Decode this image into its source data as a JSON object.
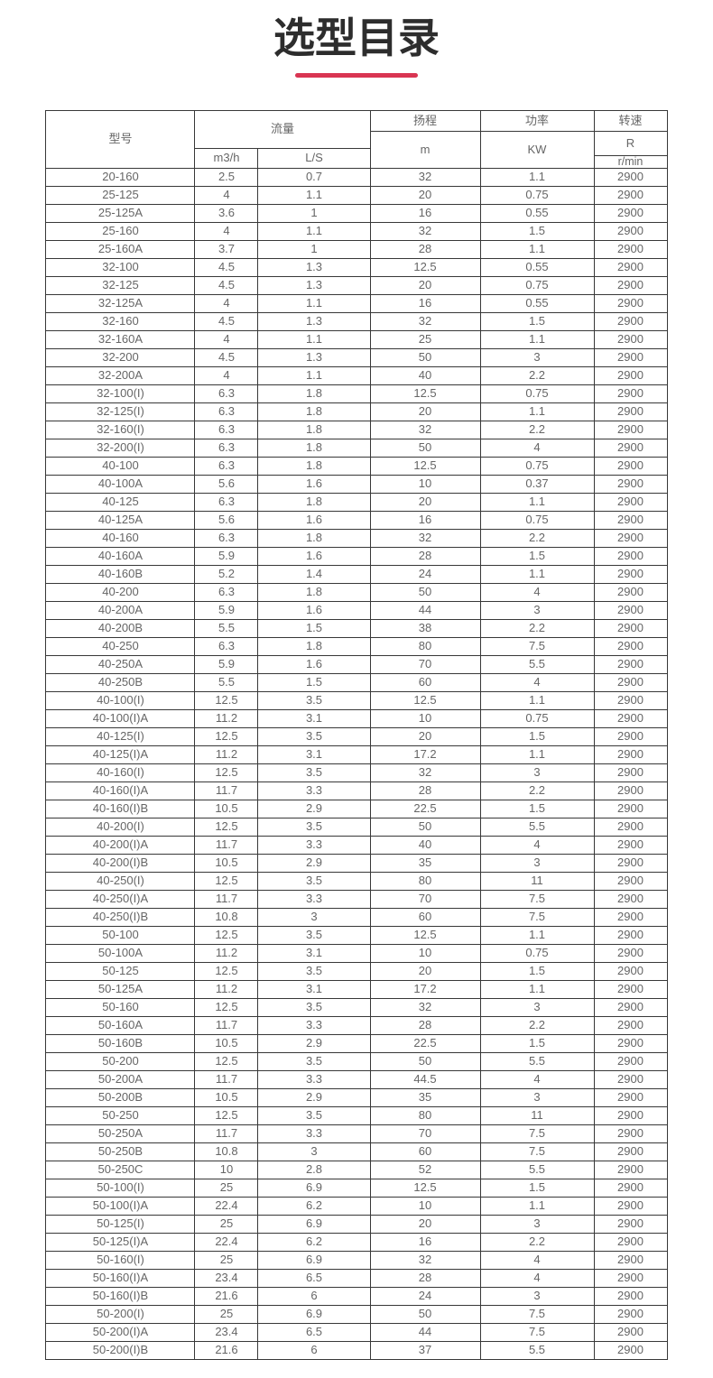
{
  "page": {
    "title": "选型目录"
  },
  "accent_color": "#d93552",
  "table": {
    "header": {
      "model": "型号",
      "flow": "流量",
      "flow_m3h": "m3/h",
      "flow_ls": "L/S",
      "head": "扬程",
      "head_unit": "m",
      "power": "功率",
      "power_unit": "KW",
      "speed": "转速",
      "speed_r": "R",
      "speed_unit": "r/min"
    },
    "rows": [
      [
        "20-160",
        "2.5",
        "0.7",
        "32",
        "1.1",
        "2900"
      ],
      [
        "25-125",
        "4",
        "1.1",
        "20",
        "0.75",
        "2900"
      ],
      [
        "25-125A",
        "3.6",
        "1",
        "16",
        "0.55",
        "2900"
      ],
      [
        "25-160",
        "4",
        "1.1",
        "32",
        "1.5",
        "2900"
      ],
      [
        "25-160A",
        "3.7",
        "1",
        "28",
        "1.1",
        "2900"
      ],
      [
        "32-100",
        "4.5",
        "1.3",
        "12.5",
        "0.55",
        "2900"
      ],
      [
        "32-125",
        "4.5",
        "1.3",
        "20",
        "0.75",
        "2900"
      ],
      [
        "32-125A",
        "4",
        "1.1",
        "16",
        "0.55",
        "2900"
      ],
      [
        "32-160",
        "4.5",
        "1.3",
        "32",
        "1.5",
        "2900"
      ],
      [
        "32-160A",
        "4",
        "1.1",
        "25",
        "1.1",
        "2900"
      ],
      [
        "32-200",
        "4.5",
        "1.3",
        "50",
        "3",
        "2900"
      ],
      [
        "32-200A",
        "4",
        "1.1",
        "40",
        "2.2",
        "2900"
      ],
      [
        "32-100(I)",
        "6.3",
        "1.8",
        "12.5",
        "0.75",
        "2900"
      ],
      [
        "32-125(I)",
        "6.3",
        "1.8",
        "20",
        "1.1",
        "2900"
      ],
      [
        "32-160(I)",
        "6.3",
        "1.8",
        "32",
        "2.2",
        "2900"
      ],
      [
        "32-200(I)",
        "6.3",
        "1.8",
        "50",
        "4",
        "2900"
      ],
      [
        "40-100",
        "6.3",
        "1.8",
        "12.5",
        "0.75",
        "2900"
      ],
      [
        "40-100A",
        "5.6",
        "1.6",
        "10",
        "0.37",
        "2900"
      ],
      [
        "40-125",
        "6.3",
        "1.8",
        "20",
        "1.1",
        "2900"
      ],
      [
        "40-125A",
        "5.6",
        "1.6",
        "16",
        "0.75",
        "2900"
      ],
      [
        "40-160",
        "6.3",
        "1.8",
        "32",
        "2.2",
        "2900"
      ],
      [
        "40-160A",
        "5.9",
        "1.6",
        "28",
        "1.5",
        "2900"
      ],
      [
        "40-160B",
        "5.2",
        "1.4",
        "24",
        "1.1",
        "2900"
      ],
      [
        "40-200",
        "6.3",
        "1.8",
        "50",
        "4",
        "2900"
      ],
      [
        "40-200A",
        "5.9",
        "1.6",
        "44",
        "3",
        "2900"
      ],
      [
        "40-200B",
        "5.5",
        "1.5",
        "38",
        "2.2",
        "2900"
      ],
      [
        "40-250",
        "6.3",
        "1.8",
        "80",
        "7.5",
        "2900"
      ],
      [
        "40-250A",
        "5.9",
        "1.6",
        "70",
        "5.5",
        "2900"
      ],
      [
        "40-250B",
        "5.5",
        "1.5",
        "60",
        "4",
        "2900"
      ],
      [
        "40-100(I)",
        "12.5",
        "3.5",
        "12.5",
        "1.1",
        "2900"
      ],
      [
        "40-100(I)A",
        "11.2",
        "3.1",
        "10",
        "0.75",
        "2900"
      ],
      [
        "40-125(I)",
        "12.5",
        "3.5",
        "20",
        "1.5",
        "2900"
      ],
      [
        "40-125(I)A",
        "11.2",
        "3.1",
        "17.2",
        "1.1",
        "2900"
      ],
      [
        "40-160(I)",
        "12.5",
        "3.5",
        "32",
        "3",
        "2900"
      ],
      [
        "40-160(I)A",
        "11.7",
        "3.3",
        "28",
        "2.2",
        "2900"
      ],
      [
        "40-160(I)B",
        "10.5",
        "2.9",
        "22.5",
        "1.5",
        "2900"
      ],
      [
        "40-200(I)",
        "12.5",
        "3.5",
        "50",
        "5.5",
        "2900"
      ],
      [
        "40-200(I)A",
        "11.7",
        "3.3",
        "40",
        "4",
        "2900"
      ],
      [
        "40-200(I)B",
        "10.5",
        "2.9",
        "35",
        "3",
        "2900"
      ],
      [
        "40-250(I)",
        "12.5",
        "3.5",
        "80",
        "11",
        "2900"
      ],
      [
        "40-250(I)A",
        "11.7",
        "3.3",
        "70",
        "7.5",
        "2900"
      ],
      [
        "40-250(I)B",
        "10.8",
        "3",
        "60",
        "7.5",
        "2900"
      ],
      [
        "50-100",
        "12.5",
        "3.5",
        "12.5",
        "1.1",
        "2900"
      ],
      [
        "50-100A",
        "11.2",
        "3.1",
        "10",
        "0.75",
        "2900"
      ],
      [
        "50-125",
        "12.5",
        "3.5",
        "20",
        "1.5",
        "2900"
      ],
      [
        "50-125A",
        "11.2",
        "3.1",
        "17.2",
        "1.1",
        "2900"
      ],
      [
        "50-160",
        "12.5",
        "3.5",
        "32",
        "3",
        "2900"
      ],
      [
        "50-160A",
        "11.7",
        "3.3",
        "28",
        "2.2",
        "2900"
      ],
      [
        "50-160B",
        "10.5",
        "2.9",
        "22.5",
        "1.5",
        "2900"
      ],
      [
        "50-200",
        "12.5",
        "3.5",
        "50",
        "5.5",
        "2900"
      ],
      [
        "50-200A",
        "11.7",
        "3.3",
        "44.5",
        "4",
        "2900"
      ],
      [
        "50-200B",
        "10.5",
        "2.9",
        "35",
        "3",
        "2900"
      ],
      [
        "50-250",
        "12.5",
        "3.5",
        "80",
        "11",
        "2900"
      ],
      [
        "50-250A",
        "11.7",
        "3.3",
        "70",
        "7.5",
        "2900"
      ],
      [
        "50-250B",
        "10.8",
        "3",
        "60",
        "7.5",
        "2900"
      ],
      [
        "50-250C",
        "10",
        "2.8",
        "52",
        "5.5",
        "2900"
      ],
      [
        "50-100(I)",
        "25",
        "6.9",
        "12.5",
        "1.5",
        "2900"
      ],
      [
        "50-100(I)A",
        "22.4",
        "6.2",
        "10",
        "1.1",
        "2900"
      ],
      [
        "50-125(I)",
        "25",
        "6.9",
        "20",
        "3",
        "2900"
      ],
      [
        "50-125(I)A",
        "22.4",
        "6.2",
        "16",
        "2.2",
        "2900"
      ],
      [
        "50-160(I)",
        "25",
        "6.9",
        "32",
        "4",
        "2900"
      ],
      [
        "50-160(I)A",
        "23.4",
        "6.5",
        "28",
        "4",
        "2900"
      ],
      [
        "50-160(I)B",
        "21.6",
        "6",
        "24",
        "3",
        "2900"
      ],
      [
        "50-200(I)",
        "25",
        "6.9",
        "50",
        "7.5",
        "2900"
      ],
      [
        "50-200(I)A",
        "23.4",
        "6.5",
        "44",
        "7.5",
        "2900"
      ],
      [
        "50-200(I)B",
        "21.6",
        "6",
        "37",
        "5.5",
        "2900"
      ]
    ]
  }
}
